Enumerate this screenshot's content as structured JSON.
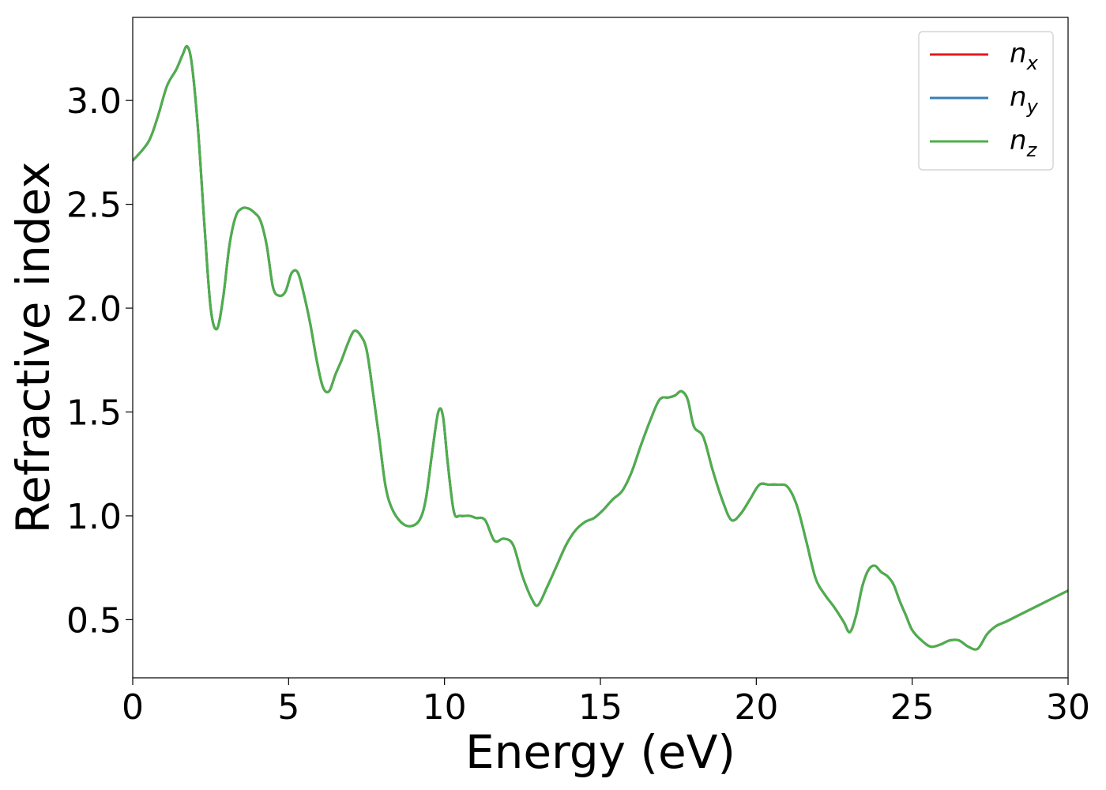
{
  "chart_data": {
    "type": "line",
    "title": "",
    "xlabel": "Energy (eV)",
    "ylabel": "Refractive index",
    "xlim": [
      0,
      30
    ],
    "ylim": [
      0.22,
      3.4
    ],
    "xticks": [
      0,
      5,
      10,
      15,
      20,
      25,
      30
    ],
    "yticks": [
      0.5,
      1.0,
      1.5,
      2.0,
      2.5,
      3.0
    ],
    "xtick_labels": [
      "0",
      "5",
      "10",
      "15",
      "20",
      "25",
      "30"
    ],
    "ytick_labels": [
      "0.5",
      "1.0",
      "1.5",
      "2.0",
      "2.5",
      "3.0"
    ],
    "grid": false,
    "legend_position": "top-right",
    "series": [
      {
        "name": "n",
        "subscript": "x",
        "color": "#e41a1c"
      },
      {
        "name": "n",
        "subscript": "y",
        "color": "#377eb8"
      },
      {
        "name": "n",
        "subscript": "z",
        "color": "#4daf4a"
      }
    ],
    "x": [
      0,
      0.5,
      0.8,
      1.1,
      1.4,
      1.6,
      1.75,
      1.9,
      2.1,
      2.3,
      2.5,
      2.7,
      2.9,
      3.1,
      3.3,
      3.5,
      3.7,
      3.9,
      4.1,
      4.3,
      4.5,
      4.7,
      4.9,
      5.1,
      5.3,
      5.5,
      5.7,
      5.9,
      6.1,
      6.3,
      6.5,
      6.7,
      6.9,
      7.1,
      7.3,
      7.5,
      7.7,
      7.9,
      8.1,
      8.3,
      8.6,
      8.9,
      9.2,
      9.4,
      9.6,
      9.8,
      9.95,
      10.1,
      10.3,
      10.5,
      10.8,
      11.0,
      11.3,
      11.6,
      11.9,
      12.2,
      12.5,
      12.8,
      13.0,
      13.3,
      13.6,
      13.9,
      14.2,
      14.5,
      14.8,
      15.1,
      15.4,
      15.7,
      16.0,
      16.3,
      16.6,
      16.9,
      17.2,
      17.4,
      17.6,
      17.8,
      18.0,
      18.3,
      18.6,
      18.9,
      19.2,
      19.5,
      19.8,
      20.1,
      20.4,
      20.7,
      21.0,
      21.3,
      21.6,
      21.9,
      22.2,
      22.5,
      22.8,
      23.0,
      23.2,
      23.4,
      23.6,
      23.8,
      24.0,
      24.2,
      24.4,
      24.6,
      24.8,
      25.0,
      25.3,
      25.6,
      25.9,
      26.2,
      26.5,
      26.8,
      27.1,
      27.4,
      27.7,
      28.0,
      28.4,
      28.8,
      29.2,
      29.6,
      30.0
    ],
    "values": [
      2.71,
      2.8,
      2.92,
      3.07,
      3.15,
      3.22,
      3.26,
      3.17,
      2.85,
      2.4,
      2.0,
      1.9,
      2.05,
      2.3,
      2.44,
      2.48,
      2.48,
      2.46,
      2.42,
      2.3,
      2.1,
      2.06,
      2.08,
      2.17,
      2.17,
      2.06,
      1.92,
      1.75,
      1.62,
      1.6,
      1.68,
      1.75,
      1.83,
      1.89,
      1.87,
      1.8,
      1.6,
      1.38,
      1.15,
      1.04,
      0.97,
      0.95,
      0.98,
      1.08,
      1.3,
      1.5,
      1.48,
      1.26,
      1.02,
      1.0,
      1.0,
      0.99,
      0.98,
      0.88,
      0.89,
      0.86,
      0.71,
      0.6,
      0.57,
      0.66,
      0.76,
      0.86,
      0.93,
      0.97,
      0.99,
      1.03,
      1.08,
      1.12,
      1.21,
      1.34,
      1.46,
      1.56,
      1.57,
      1.58,
      1.6,
      1.56,
      1.43,
      1.38,
      1.22,
      1.08,
      0.98,
      1.01,
      1.08,
      1.15,
      1.15,
      1.15,
      1.14,
      1.05,
      0.88,
      0.7,
      0.62,
      0.56,
      0.49,
      0.44,
      0.52,
      0.66,
      0.74,
      0.76,
      0.73,
      0.71,
      0.67,
      0.59,
      0.52,
      0.45,
      0.4,
      0.37,
      0.38,
      0.4,
      0.4,
      0.37,
      0.36,
      0.43,
      0.47,
      0.49,
      0.52,
      0.55,
      0.58,
      0.61,
      0.64
    ]
  }
}
